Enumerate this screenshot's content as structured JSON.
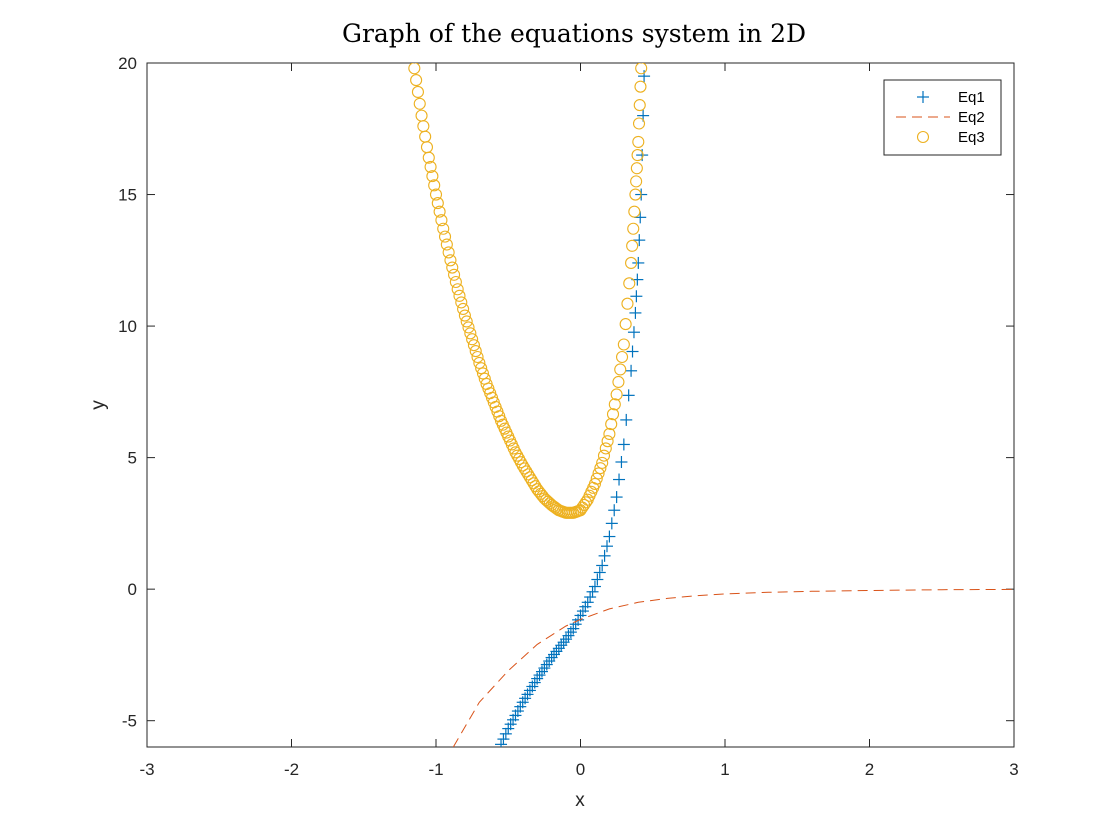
{
  "chart_data": {
    "type": "line",
    "title": "Graph of the equations system in 2D",
    "xlabel": "x",
    "ylabel": "y",
    "xlim": [
      -3,
      3
    ],
    "ylim": [
      -6,
      20
    ],
    "xticks": [
      -3,
      -2,
      -1,
      0,
      1,
      2,
      3
    ],
    "yticks": [
      -5,
      0,
      5,
      10,
      15,
      20
    ],
    "xtick_labels": [
      "-3",
      "-2",
      "-1",
      "0",
      "1",
      "2",
      "3"
    ],
    "ytick_labels": [
      "-5",
      "0",
      "5",
      "10",
      "15",
      "20"
    ],
    "grid": false,
    "legend_position": "top-right",
    "series": [
      {
        "name": "Eq1",
        "marker": "plus",
        "linestyle": "none",
        "color": "#0072BD",
        "x": [
          -0.55,
          -0.5,
          -0.45,
          -0.4,
          -0.35,
          -0.3,
          -0.25,
          -0.2,
          -0.15,
          -0.1,
          -0.05,
          0.0,
          0.05,
          0.1,
          0.15,
          0.2,
          0.25,
          0.3,
          0.35,
          0.38,
          0.4,
          0.42,
          0.44
        ],
        "y": [
          -5.9,
          -5.3,
          -4.8,
          -4.3,
          -3.85,
          -3.4,
          -3.0,
          -2.6,
          -2.25,
          -1.9,
          -1.5,
          -1.0,
          -0.5,
          0.1,
          0.9,
          2.0,
          3.5,
          5.5,
          8.3,
          10.5,
          12.4,
          15.0,
          19.5
        ]
      },
      {
        "name": "Eq2",
        "marker": "none",
        "linestyle": "dashed",
        "color": "#D95319",
        "x": [
          -0.88,
          -0.7,
          -0.5,
          -0.3,
          -0.1,
          0.0,
          0.2,
          0.4,
          0.6,
          0.8,
          1.0,
          1.3,
          1.6,
          2.0,
          2.5,
          3.0
        ],
        "y": [
          -6.0,
          -4.3,
          -3.1,
          -2.1,
          -1.4,
          -1.15,
          -0.75,
          -0.5,
          -0.35,
          -0.25,
          -0.18,
          -0.12,
          -0.08,
          -0.05,
          -0.02,
          -0.01
        ]
      },
      {
        "name": "Eq3",
        "marker": "circle",
        "linestyle": "none",
        "color": "#EDB120",
        "x": [
          -1.15,
          -1.1,
          -1.05,
          -1.0,
          -0.95,
          -0.9,
          -0.85,
          -0.8,
          -0.75,
          -0.7,
          -0.65,
          -0.6,
          -0.55,
          -0.5,
          -0.45,
          -0.4,
          -0.35,
          -0.3,
          -0.25,
          -0.2,
          -0.15,
          -0.1,
          -0.05,
          0.0,
          0.05,
          0.1,
          0.15,
          0.2,
          0.25,
          0.3,
          0.35,
          0.38,
          0.4,
          0.42
        ],
        "y": [
          19.8,
          18.0,
          16.4,
          15.0,
          13.7,
          12.5,
          11.4,
          10.4,
          9.5,
          8.6,
          7.8,
          7.1,
          6.4,
          5.8,
          5.2,
          4.7,
          4.25,
          3.8,
          3.45,
          3.2,
          3.0,
          2.9,
          2.9,
          3.0,
          3.4,
          4.0,
          4.8,
          5.9,
          7.4,
          9.3,
          12.4,
          15.0,
          17.0,
          19.8
        ]
      }
    ]
  }
}
